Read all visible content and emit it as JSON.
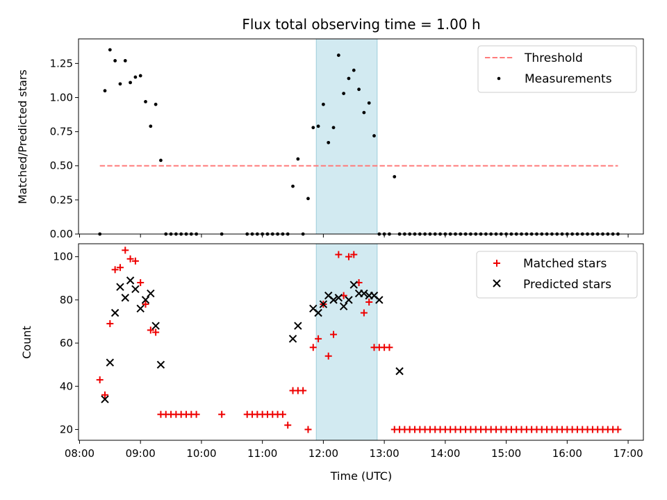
{
  "title": "Flux total observing time = 1.00 h",
  "xlabel": "Time (UTC)",
  "x_ticks": [
    "08:00",
    "09:00",
    "10:00",
    "11:00",
    "12:00",
    "13:00",
    "14:00",
    "15:00",
    "16:00",
    "17:00"
  ],
  "colors": {
    "threshold": "#ff7b7b",
    "measurement": "#000000",
    "matched": "#ee0000",
    "predicted": "#000000",
    "span": "#add8e6"
  },
  "chart_data": [
    {
      "type": "scatter",
      "ylabel": "Matched/Predicted stars",
      "xlim": [
        "07:59",
        "17:15"
      ],
      "ylim": [
        0,
        1.43
      ],
      "y_ticks": [
        "0.00",
        "0.25",
        "0.50",
        "0.75",
        "1.00",
        "1.25"
      ],
      "highlight_span": [
        "11:53",
        "12:53"
      ],
      "legend": {
        "placement": "upper right",
        "entries": [
          "Threshold",
          "Measurements"
        ]
      },
      "series": [
        {
          "name": "Threshold",
          "style": "dashed-line",
          "x": [
            "08:20",
            "16:50"
          ],
          "y": [
            0.5,
            0.5
          ]
        },
        {
          "name": "Measurements",
          "style": "dot",
          "x": [
            "08:20",
            "08:25",
            "08:30",
            "08:35",
            "08:40",
            "08:45",
            "08:50",
            "08:55",
            "09:00",
            "09:05",
            "09:10",
            "09:15",
            "09:20",
            "09:25",
            "09:30",
            "09:35",
            "09:40",
            "09:45",
            "09:50",
            "09:55",
            "10:20",
            "10:45",
            "10:50",
            "10:55",
            "11:00",
            "11:05",
            "11:10",
            "11:15",
            "11:20",
            "11:25",
            "11:30",
            "11:35",
            "11:40",
            "11:45",
            "11:50",
            "11:55",
            "12:00",
            "12:05",
            "12:10",
            "12:15",
            "12:20",
            "12:25",
            "12:30",
            "12:35",
            "12:40",
            "12:45",
            "12:50",
            "12:55",
            "13:00",
            "13:05",
            "13:10",
            "13:15",
            "13:20",
            "13:25",
            "13:30",
            "13:35",
            "13:40",
            "13:45",
            "13:50",
            "13:55",
            "14:00",
            "14:05",
            "14:10",
            "14:15",
            "14:20",
            "14:25",
            "14:30",
            "14:35",
            "14:40",
            "14:45",
            "14:50",
            "14:55",
            "15:00",
            "15:05",
            "15:10",
            "15:15",
            "15:20",
            "15:25",
            "15:30",
            "15:35",
            "15:40",
            "15:45",
            "15:50",
            "15:55",
            "16:00",
            "16:05",
            "16:10",
            "16:15",
            "16:20",
            "16:25",
            "16:30",
            "16:35",
            "16:40",
            "16:45",
            "16:50"
          ],
          "y": [
            0,
            1.05,
            1.35,
            1.27,
            1.1,
            1.27,
            1.11,
            1.15,
            1.16,
            0.97,
            0.79,
            0.95,
            0.54,
            0,
            0,
            0,
            0,
            0,
            0,
            0,
            0,
            0,
            0,
            0,
            0,
            0,
            0,
            0,
            0,
            0,
            0.35,
            0.55,
            0,
            0.26,
            0.78,
            0.79,
            0.95,
            0.67,
            0.78,
            1.31,
            1.03,
            1.14,
            1.2,
            1.06,
            0.89,
            0.96,
            0.72,
            0,
            0,
            0,
            0.42,
            0,
            0,
            0,
            0,
            0,
            0,
            0,
            0,
            0,
            0,
            0,
            0,
            0,
            0,
            0,
            0,
            0,
            0,
            0,
            0,
            0,
            0,
            0,
            0,
            0,
            0,
            0,
            0,
            0,
            0,
            0,
            0,
            0,
            0,
            0,
            0,
            0,
            0,
            0,
            0,
            0,
            0,
            0,
            0
          ]
        }
      ]
    },
    {
      "type": "scatter",
      "ylabel": "Count",
      "xlim": [
        "07:59",
        "17:15"
      ],
      "ylim": [
        15,
        106
      ],
      "y_ticks": [
        "20",
        "40",
        "60",
        "80",
        "100"
      ],
      "highlight_span": [
        "11:53",
        "12:53"
      ],
      "legend": {
        "placement": "upper right",
        "entries": [
          "Matched stars",
          "Predicted stars"
        ]
      },
      "series": [
        {
          "name": "Matched stars",
          "style": "plus",
          "x": [
            "08:20",
            "08:25",
            "08:30",
            "08:35",
            "08:40",
            "08:45",
            "08:50",
            "08:55",
            "09:00",
            "09:05",
            "09:10",
            "09:15",
            "09:20",
            "09:25",
            "09:30",
            "09:35",
            "09:40",
            "09:45",
            "09:50",
            "09:55",
            "10:20",
            "10:45",
            "10:50",
            "10:55",
            "11:00",
            "11:05",
            "11:10",
            "11:15",
            "11:20",
            "11:25",
            "11:30",
            "11:35",
            "11:40",
            "11:45",
            "11:50",
            "11:55",
            "12:00",
            "12:05",
            "12:10",
            "12:15",
            "12:20",
            "12:25",
            "12:30",
            "12:35",
            "12:40",
            "12:45",
            "12:50",
            "12:55",
            "13:00",
            "13:05",
            "13:10",
            "13:15",
            "13:20",
            "13:25",
            "13:30",
            "13:35",
            "13:40",
            "13:45",
            "13:50",
            "13:55",
            "14:00",
            "14:05",
            "14:10",
            "14:15",
            "14:20",
            "14:25",
            "14:30",
            "14:35",
            "14:40",
            "14:45",
            "14:50",
            "14:55",
            "15:00",
            "15:05",
            "15:10",
            "15:15",
            "15:20",
            "15:25",
            "15:30",
            "15:35",
            "15:40",
            "15:45",
            "15:50",
            "15:55",
            "16:00",
            "16:05",
            "16:10",
            "16:15",
            "16:20",
            "16:25",
            "16:30",
            "16:35",
            "16:40",
            "16:45",
            "16:50"
          ],
          "y": [
            43,
            36,
            69,
            94,
            95,
            103,
            99,
            98,
            88,
            78,
            66,
            65,
            27,
            27,
            27,
            27,
            27,
            27,
            27,
            27,
            27,
            27,
            27,
            27,
            27,
            27,
            27,
            27,
            27,
            22,
            38,
            38,
            38,
            20,
            58,
            62,
            78,
            54,
            64,
            101,
            82,
            100,
            101,
            88,
            74,
            79,
            58,
            58,
            58,
            58,
            20,
            20,
            20,
            20,
            20,
            20,
            20,
            20,
            20,
            20,
            20,
            20,
            20,
            20,
            20,
            20,
            20,
            20,
            20,
            20,
            20,
            20,
            20,
            20,
            20,
            20,
            20,
            20,
            20,
            20,
            20,
            20,
            20,
            20,
            20,
            20,
            20,
            20,
            20,
            20,
            20,
            20,
            20,
            20,
            20
          ]
        },
        {
          "name": "Predicted stars",
          "style": "x",
          "x": [
            "08:25",
            "08:30",
            "08:35",
            "08:40",
            "08:45",
            "08:50",
            "08:55",
            "09:00",
            "09:05",
            "09:10",
            "09:15",
            "09:20",
            "11:30",
            "11:35",
            "11:50",
            "11:55",
            "12:00",
            "12:05",
            "12:10",
            "12:15",
            "12:20",
            "12:25",
            "12:30",
            "12:35",
            "12:40",
            "12:45",
            "12:50",
            "12:55",
            "13:15"
          ],
          "y": [
            34,
            51,
            74,
            86,
            81,
            89,
            85,
            76,
            80,
            83,
            68,
            50,
            62,
            68,
            76,
            74,
            78,
            82,
            80,
            81,
            77,
            80,
            87,
            83,
            83,
            82,
            82,
            80,
            47
          ]
        }
      ]
    }
  ]
}
